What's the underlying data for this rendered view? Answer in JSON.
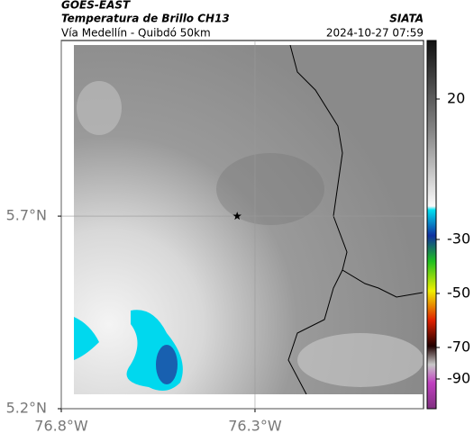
{
  "header": {
    "satellite": "GOES-EAST",
    "product": "Temperatura de Brillo CH13",
    "region": "Vía Medellín - Quibdó 50km",
    "source": "SIATA",
    "datetime": "2024-10-27 07:59"
  },
  "map": {
    "xlim": [
      -76.8,
      -75.865
    ],
    "ylim": [
      5.2,
      6.156
    ],
    "xticks": [
      {
        "value": -76.8,
        "label": "76.8°W"
      },
      {
        "value": -76.3,
        "label": "76.3°W"
      }
    ],
    "yticks": [
      {
        "value": 5.7,
        "label": "5.7°N"
      },
      {
        "value": 5.2,
        "label": "5.2°N"
      }
    ],
    "marker": {
      "lon": -76.346,
      "lat": 5.7
    }
  },
  "colorbar": {
    "ticks": [
      20,
      -30,
      -50,
      -70,
      -90
    ]
  }
}
